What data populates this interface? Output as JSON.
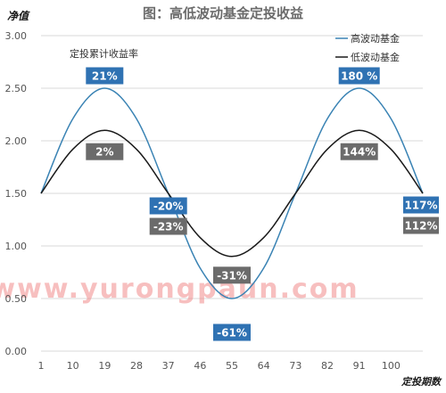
{
  "chart_data": {
    "type": "line",
    "title": "图：高低波动基金定投收益",
    "ylabel": "净值",
    "xlabel": "定投期数",
    "annotation": "定投累计收益率",
    "watermark": "www.yurongpaun.com",
    "ylim": [
      0,
      3
    ],
    "y_ticks": [
      "0.00",
      "0.50",
      "1.00",
      "1.50",
      "2.00",
      "2.50",
      "3.00"
    ],
    "xlim": [
      1,
      109
    ],
    "x_ticks": [
      "1",
      "10",
      "19",
      "28",
      "37",
      "46",
      "55",
      "64",
      "73",
      "82",
      "91",
      "100"
    ],
    "legend_position": "top-right",
    "series": [
      {
        "name": "高波动基金",
        "color": "#3a83b4",
        "x": [
          1,
          10,
          19,
          28,
          37,
          46,
          55,
          64,
          73,
          82,
          91,
          100,
          109
        ],
        "values": [
          1.5,
          2.21,
          2.5,
          2.21,
          1.5,
          0.79,
          0.5,
          0.79,
          1.5,
          2.21,
          2.5,
          2.21,
          1.5
        ]
      },
      {
        "name": "低波动基金",
        "color": "#1a1a1a",
        "x": [
          1,
          10,
          19,
          28,
          37,
          46,
          55,
          64,
          73,
          82,
          91,
          100,
          109
        ],
        "values": [
          1.5,
          1.92,
          2.1,
          1.92,
          1.5,
          1.08,
          0.9,
          1.08,
          1.5,
          1.92,
          2.1,
          1.92,
          1.5
        ]
      }
    ],
    "data_labels": [
      {
        "text": "21%",
        "series": 0,
        "x": 19,
        "y": 2.5,
        "color": "#2f72b3"
      },
      {
        "text": "2%",
        "series": 1,
        "x": 19,
        "y": 2.1,
        "color": "#6b6b6b"
      },
      {
        "text": "-20%",
        "series": 0,
        "x": 37,
        "y": 1.5,
        "color": "#2f72b3"
      },
      {
        "text": "-23%",
        "series": 1,
        "x": 37,
        "y": 1.5,
        "color": "#6b6b6b"
      },
      {
        "text": "-31%",
        "series": 1,
        "x": 55,
        "y": 0.9,
        "color": "#6b6b6b"
      },
      {
        "text": "-61%",
        "series": 0,
        "x": 55,
        "y": 0.5,
        "color": "#2f72b3"
      },
      {
        "text": "180 %",
        "series": 0,
        "x": 91,
        "y": 2.5,
        "color": "#2f72b3"
      },
      {
        "text": "144%",
        "series": 1,
        "x": 91,
        "y": 2.1,
        "color": "#6b6b6b"
      },
      {
        "text": "117%",
        "series": 0,
        "x": 109,
        "y": 1.5,
        "color": "#2f72b3"
      },
      {
        "text": "112%",
        "series": 1,
        "x": 109,
        "y": 1.5,
        "color": "#6b6b6b"
      }
    ]
  }
}
